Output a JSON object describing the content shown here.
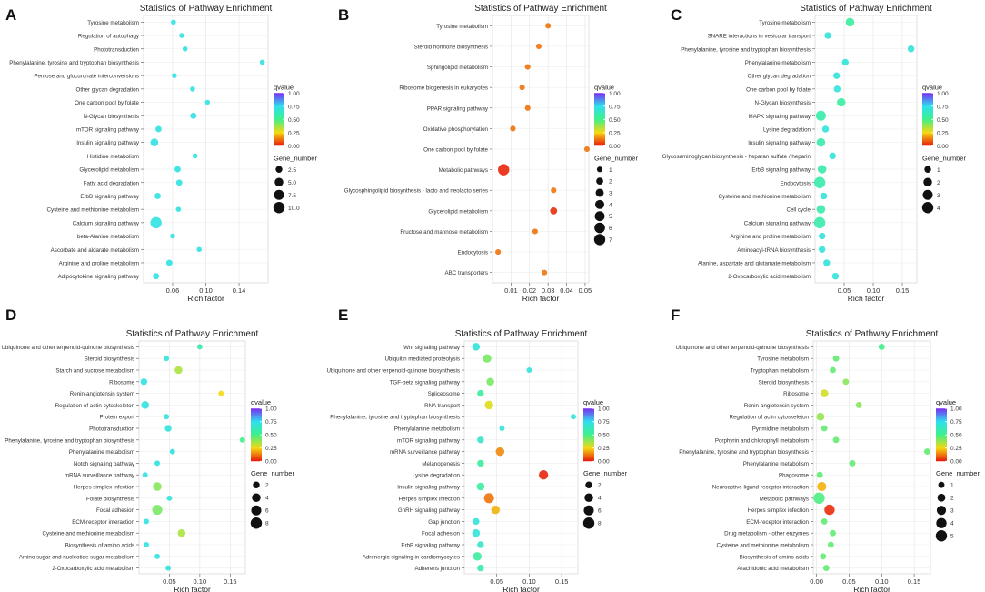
{
  "color_scale": {
    "low": "#e8160c",
    "mid_low": "#f5d90f",
    "mid": "#3ef08a",
    "mid_high": "#2fe0ee",
    "high": "#7a2bf2"
  },
  "panels": [
    {
      "letter": "A",
      "title": "Statistics of Pathway Enrichment",
      "chart_data": {
        "type": "scatter",
        "title": "Statistics of Pathway Enrichment",
        "xlabel": "Rich factor",
        "xlim": [
          0.025,
          0.175
        ],
        "xticks": [
          "0.06",
          "0.10",
          "0.14"
        ],
        "xtick_values": [
          0.06,
          0.1,
          0.14
        ],
        "categories": [
          "Tyrosine metabolism",
          "Regulation of autophagy",
          "Phototransduction",
          "Phenylalanine, tyrosine and tryptophan biosynthesis",
          "Pentose and glucuronate interconversions",
          "Other glycan degradation",
          "One carbon pool by folate",
          "N-Glycan biosynthesis",
          "mTOR signaling pathway",
          "Insulin signaling pathway",
          "Histidine metabolism",
          "Glycerolipid metabolism",
          "Fatty acid degradation",
          "ErbB signaling pathway",
          "Cysteine and methionine metabolism",
          "Calcium signaling pathway",
          "beta-Alanine metabolism",
          "Ascorbate and aldarate metabolism",
          "Arginine and proline metabolism",
          "Adipocytokine signaling pathway"
        ],
        "rich_factor": [
          0.061,
          0.071,
          0.075,
          0.168,
          0.062,
          0.084,
          0.102,
          0.085,
          0.043,
          0.038,
          0.087,
          0.066,
          0.068,
          0.042,
          0.067,
          0.04,
          0.06,
          0.092,
          0.056,
          0.04
        ],
        "gene_number": [
          1,
          1,
          1,
          1,
          1,
          1,
          1,
          2,
          2,
          4,
          1,
          2,
          2,
          2,
          1,
          10,
          1,
          1,
          2,
          2
        ],
        "qvalue": [
          0.72,
          0.72,
          0.72,
          0.72,
          0.72,
          0.72,
          0.72,
          0.72,
          0.72,
          0.72,
          0.72,
          0.72,
          0.72,
          0.72,
          0.72,
          0.72,
          0.72,
          0.72,
          0.72,
          0.72
        ],
        "legend_qvalue": {
          "title": "qvalue",
          "ticks": [
            "1.00",
            "0.75",
            "0.50",
            "0.25",
            "0.00"
          ]
        },
        "legend_size": {
          "title": "Gene_number",
          "labels": [
            "2.5",
            "5.0",
            "7.5",
            "10.0"
          ],
          "values": [
            2.5,
            5,
            7.5,
            10
          ]
        }
      }
    },
    {
      "letter": "B",
      "title": "Statistics of Pathway Enrichment",
      "chart_data": {
        "type": "scatter",
        "title": "Statistics of Pathway Enrichment",
        "xlabel": "Rich factor",
        "xlim": [
          0.0,
          0.052
        ],
        "xticks": [
          "0.01",
          "0.02",
          "0.03",
          "0.04",
          "0.05"
        ],
        "xtick_values": [
          0.01,
          0.02,
          0.03,
          0.04,
          0.05
        ],
        "categories": [
          "Tyrosine metabolism",
          "Steroid hormone biosynthesis",
          "Sphingolipid metabolism",
          "Ribosome biogenesis in eukaryotes",
          "PPAR signaling pathway",
          "Oxidative phosphorylation",
          "One carbon pool by folate",
          "Metabolic pathways",
          "Glycosphingolipid biosynthesis - lacto and neolacto series",
          "Glycerolipid metabolism",
          "Fructose and mannose metabolism",
          "Endocytosis",
          "ABC transporters"
        ],
        "rich_factor": [
          0.03,
          0.025,
          0.019,
          0.016,
          0.019,
          0.011,
          0.051,
          0.006,
          0.033,
          0.033,
          0.023,
          0.003,
          0.028
        ],
        "gene_number": [
          1,
          1,
          1,
          1,
          1,
          1,
          1,
          7,
          1,
          2,
          1,
          1,
          1
        ],
        "qvalue": [
          0.12,
          0.12,
          0.12,
          0.12,
          0.12,
          0.12,
          0.12,
          0.02,
          0.12,
          0.03,
          0.12,
          0.12,
          0.12
        ],
        "legend_qvalue": {
          "title": "qvalue",
          "ticks": [
            "1.00",
            "0.75",
            "0.50",
            "0.25",
            "0.00"
          ]
        },
        "legend_size": {
          "title": "Gene_number",
          "labels": [
            "1",
            "2",
            "3",
            "4",
            "5",
            "6",
            "7"
          ],
          "values": [
            1,
            2,
            3,
            4,
            5,
            6,
            7
          ]
        }
      }
    },
    {
      "letter": "C",
      "title": "Statistics of Pathway Enrichment",
      "chart_data": {
        "type": "scatter",
        "title": "Statistics of Pathway Enrichment",
        "xlabel": "Rich factor",
        "xlim": [
          0.0,
          0.175
        ],
        "xticks": [
          "0.05",
          "0.10",
          "0.15"
        ],
        "xtick_values": [
          0.05,
          0.1,
          0.15
        ],
        "categories": [
          "Tyrosine metabolism",
          "SNARE interactions in vesicular transport",
          "Phenylalanine, tyrosine and tryptophan biosynthesis",
          "Phenylalanine metabolism",
          "Other glycan degradation",
          "One carbon pool by folate",
          "N-Glycan biosynthesis",
          "MAPK signaling pathway",
          "Lysine degradation",
          "Insulin signaling pathway",
          "Glycosaminoglycan biosynthesis - heparan sulfate / heparin",
          "ErbB signaling pathway",
          "Endocytosis",
          "Cysteine and methionine metabolism",
          "Cell cycle",
          "Calcium signaling pathway",
          "Arginine and proline metabolism",
          "Aminoacyl-tRNA biosynthesis",
          "Alanine, aspartate and glutamate metabolism",
          "2-Oxocarboxylic acid metabolism"
        ],
        "rich_factor": [
          0.06,
          0.022,
          0.165,
          0.052,
          0.037,
          0.038,
          0.045,
          0.01,
          0.018,
          0.01,
          0.03,
          0.012,
          0.008,
          0.015,
          0.01,
          0.008,
          0.012,
          0.012,
          0.02,
          0.035
        ],
        "gene_number": [
          2,
          1,
          1,
          1,
          1,
          1,
          2,
          3,
          1,
          2,
          1,
          2,
          4,
          1,
          2,
          4,
          1,
          1,
          1,
          1
        ],
        "qvalue": [
          0.55,
          0.7,
          0.7,
          0.7,
          0.7,
          0.7,
          0.55,
          0.58,
          0.7,
          0.58,
          0.7,
          0.58,
          0.58,
          0.7,
          0.58,
          0.58,
          0.7,
          0.7,
          0.7,
          0.7
        ],
        "legend_qvalue": {
          "title": "qvalue",
          "ticks": [
            "1.00",
            "0.75",
            "0.50",
            "0.25",
            "0.00"
          ]
        },
        "legend_size": {
          "title": "Gene_number",
          "labels": [
            "1",
            "2",
            "3",
            "4"
          ],
          "values": [
            1,
            2,
            3,
            4
          ]
        }
      }
    },
    {
      "letter": "D",
      "title": "Statistics of Pathway Enrichment",
      "chart_data": {
        "type": "scatter",
        "title": "Statistics of Pathway Enrichment",
        "xlabel": "Rich factor",
        "xlim": [
          0.0,
          0.175
        ],
        "xticks": [
          "0.05",
          "0.10",
          "0.15"
        ],
        "xtick_values": [
          0.05,
          0.1,
          0.15
        ],
        "categories": [
          "Ubiquinone and other terpenoid-quinone biosynthesis",
          "Steroid biosynthesis",
          "Starch and sucrose metabolism",
          "Ribosome",
          "Renin-angiotensin system",
          "Regulation of actin cytoskeleton",
          "Protein export",
          "Phototransduction",
          "Phenylalanine, tyrosine and tryptophan biosynthesis",
          "Phenylalanine metabolism",
          "Notch signaling pathway",
          "mRNA surveillance pathway",
          "Herpes simplex infection",
          "Folate biosynthesis",
          "Focal adhesion",
          "ECM-receptor interaction",
          "Cysteine and methionine metabolism",
          "Biosynthesis of amino acids",
          "Amino sugar and nucleotide sugar metabolism",
          "2-Oxocarboxylic acid metabolism"
        ],
        "rich_factor": [
          0.1,
          0.045,
          0.065,
          0.008,
          0.135,
          0.01,
          0.045,
          0.048,
          0.17,
          0.055,
          0.03,
          0.01,
          0.03,
          0.05,
          0.03,
          0.012,
          0.07,
          0.012,
          0.03,
          0.048
        ],
        "gene_number": [
          1,
          1,
          3,
          2,
          1,
          3,
          1,
          2,
          1,
          1,
          1,
          1,
          4,
          1,
          6,
          1,
          3,
          1,
          1,
          1
        ],
        "qvalue": [
          0.6,
          0.7,
          0.35,
          0.72,
          0.25,
          0.72,
          0.7,
          0.7,
          0.5,
          0.7,
          0.72,
          0.72,
          0.4,
          0.7,
          0.42,
          0.72,
          0.35,
          0.72,
          0.72,
          0.7
        ],
        "legend_qvalue": {
          "title": "qvalue",
          "ticks": [
            "1.00",
            "0.75",
            "0.50",
            "0.25",
            "0.00"
          ]
        },
        "legend_size": {
          "title": "Gene_number",
          "labels": [
            "2",
            "4",
            "6",
            "8"
          ],
          "values": [
            2,
            4,
            6,
            8
          ]
        }
      }
    },
    {
      "letter": "E",
      "title": "Statistics of Pathway Enrichment",
      "chart_data": {
        "type": "scatter",
        "title": "Statistics of Pathway Enrichment",
        "xlabel": "Rich factor",
        "xlim": [
          0.0,
          0.175
        ],
        "xticks": [
          "0.05",
          "0.10",
          "0.15"
        ],
        "xtick_values": [
          0.05,
          0.1,
          0.15
        ],
        "categories": [
          "Wnt signaling pathway",
          "Ubiquitin mediated proteolysis",
          "Ubiquinone and other terpenoid-quinone biosynthesis",
          "TGF-beta signaling pathway",
          "Spliceosome",
          "RNA transport",
          "Phenylalanine, tyrosine and tryptophan biosynthesis",
          "Phenylalanine metabolism",
          "mTOR signaling pathway",
          "mRNA surveillance pathway",
          "Melanogenesis",
          "Lysine degradation",
          "Insulin signaling pathway",
          "Herpes simplex infection",
          "GnRH signaling pathway",
          "Gap junction",
          "Focal adhesion",
          "ErbB signaling pathway",
          "Adrenergic signaling in cardiomyocytes",
          "Adherens junction"
        ],
        "rich_factor": [
          0.018,
          0.035,
          0.1,
          0.04,
          0.025,
          0.038,
          0.168,
          0.058,
          0.025,
          0.055,
          0.025,
          0.122,
          0.025,
          0.038,
          0.048,
          0.018,
          0.018,
          0.025,
          0.02,
          0.025
        ],
        "gene_number": [
          3,
          4,
          1,
          3,
          2,
          4,
          1,
          1,
          2,
          4,
          2,
          5,
          3,
          6,
          4,
          2,
          3,
          2,
          4,
          2
        ],
        "qvalue": [
          0.7,
          0.42,
          0.7,
          0.42,
          0.55,
          0.28,
          0.7,
          0.7,
          0.65,
          0.15,
          0.55,
          0.02,
          0.55,
          0.12,
          0.2,
          0.7,
          0.7,
          0.65,
          0.55,
          0.6
        ],
        "legend_qvalue": {
          "title": "qvalue",
          "ticks": [
            "1.00",
            "0.75",
            "0.50",
            "0.25",
            "0.00"
          ]
        },
        "legend_size": {
          "title": "Gene_number",
          "labels": [
            "2",
            "4",
            "6",
            "8"
          ],
          "values": [
            2,
            4,
            6,
            8
          ]
        }
      }
    },
    {
      "letter": "F",
      "title": "Statistics of Pathway Enrichment",
      "chart_data": {
        "type": "scatter",
        "title": "Statistics of Pathway Enrichment",
        "xlabel": "Rich factor",
        "xlim": [
          -0.005,
          0.175
        ],
        "xticks": [
          "0.00",
          "0.05",
          "0.10",
          "0.15"
        ],
        "xtick_values": [
          0.0,
          0.05,
          0.1,
          0.15
        ],
        "categories": [
          "Ubiquinone and other terpenoid-quinone biosynthesis",
          "Tyrosine metabolism",
          "Tryptophan metabolism",
          "Steroid biosynthesis",
          "Ribosome",
          "Renin-angiotensin system",
          "Regulation of actin cytoskeleton",
          "Pyrimidine metabolism",
          "Porphyrin and chlorophyll metabolism",
          "Phenylalanine, tyrosine and tryptophan biosynthesis",
          "Phenylalanine metabolism",
          "Phagosome",
          "Neuroactive ligand-receptor interaction",
          "Metabolic pathways",
          "Herpes simplex infection",
          "ECM-receptor interaction",
          "Drug metabolism - other enzymes",
          "Cysteine and methionine metabolism",
          "Biosynthesis of amino acids",
          "Arachidonic acid metabolism"
        ],
        "rich_factor": [
          0.1,
          0.03,
          0.025,
          0.045,
          0.012,
          0.065,
          0.006,
          0.012,
          0.03,
          0.17,
          0.055,
          0.005,
          0.008,
          0.004,
          0.02,
          0.012,
          0.025,
          0.022,
          0.01,
          0.015
        ],
        "gene_number": [
          1,
          1,
          1,
          1,
          2,
          1,
          2,
          1,
          1,
          1,
          1,
          1,
          3,
          5,
          4,
          1,
          1,
          1,
          1,
          1
        ],
        "qvalue": [
          0.5,
          0.45,
          0.45,
          0.4,
          0.3,
          0.4,
          0.38,
          0.45,
          0.45,
          0.45,
          0.45,
          0.45,
          0.2,
          0.48,
          0.03,
          0.45,
          0.45,
          0.45,
          0.45,
          0.45
        ],
        "legend_qvalue": {
          "title": "qvalue",
          "ticks": [
            "1.00",
            "0.75",
            "0.50",
            "0.25",
            "0.00"
          ]
        },
        "legend_size": {
          "title": "Gene_number",
          "labels": [
            "1",
            "2",
            "3",
            "4",
            "5"
          ],
          "values": [
            1,
            2,
            3,
            4,
            5
          ]
        }
      }
    }
  ]
}
